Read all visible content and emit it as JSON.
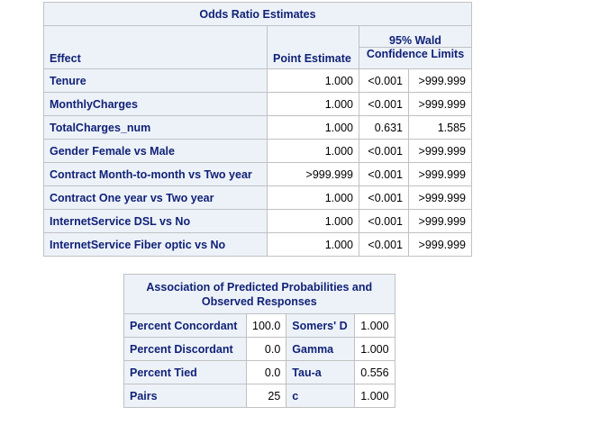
{
  "odds_ratio": {
    "title": "Odds Ratio Estimates",
    "headers": {
      "effect": "Effect",
      "point_estimate": "Point Estimate",
      "ci_line1": "95% Wald",
      "ci_line2": "Confidence Limits"
    },
    "rows": [
      {
        "effect": "Tenure",
        "estimate": "1.000",
        "lower": "<0.001",
        "upper": ">999.999"
      },
      {
        "effect": "MonthlyCharges",
        "estimate": "1.000",
        "lower": "<0.001",
        "upper": ">999.999"
      },
      {
        "effect": "TotalCharges_num",
        "estimate": "1.000",
        "lower": "0.631",
        "upper": "1.585"
      },
      {
        "effect": "Gender Female vs Male",
        "estimate": "1.000",
        "lower": "<0.001",
        "upper": ">999.999"
      },
      {
        "effect": "Contract Month-to-month vs Two year",
        "estimate": ">999.999",
        "lower": "<0.001",
        "upper": ">999.999"
      },
      {
        "effect": "Contract One year vs Two year",
        "estimate": "1.000",
        "lower": "<0.001",
        "upper": ">999.999"
      },
      {
        "effect": "InternetService DSL vs No",
        "estimate": "1.000",
        "lower": "<0.001",
        "upper": ">999.999"
      },
      {
        "effect": "InternetService Fiber optic vs No",
        "estimate": "1.000",
        "lower": "<0.001",
        "upper": ">999.999"
      }
    ]
  },
  "association": {
    "title_line1": "Association of Predicted Probabilities and",
    "title_line2": "Observed Responses",
    "rows": [
      {
        "label1": "Percent Concordant",
        "value1": "100.0",
        "label2": "Somers' D",
        "value2": "1.000"
      },
      {
        "label1": "Percent Discordant",
        "value1": "0.0",
        "label2": "Gamma",
        "value2": "1.000"
      },
      {
        "label1": "Percent Tied",
        "value1": "0.0",
        "label2": "Tau-a",
        "value2": "0.556"
      },
      {
        "label1": "Pairs",
        "value1": "25",
        "label2": "c",
        "value2": "1.000"
      }
    ]
  }
}
